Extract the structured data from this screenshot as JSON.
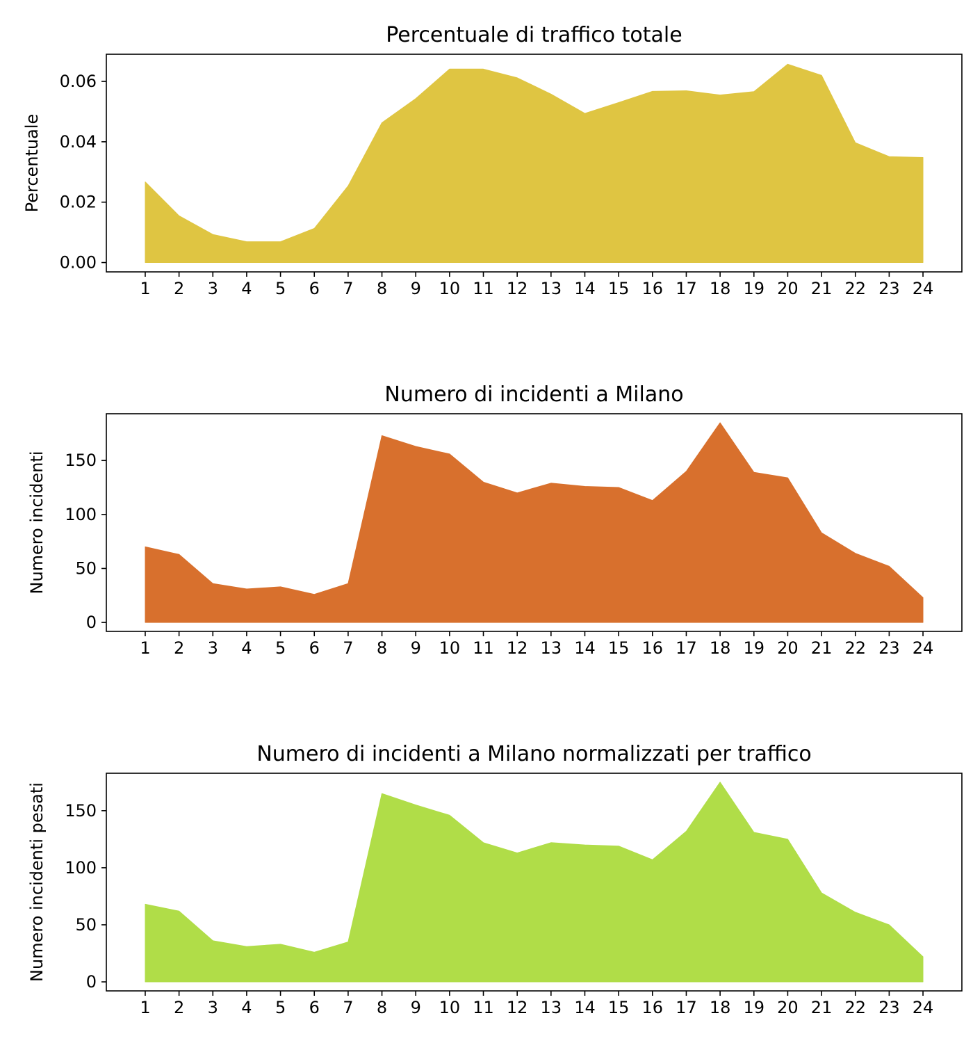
{
  "chart_data": [
    {
      "type": "area",
      "title": "Percentuale di traffico totale",
      "xlabel": "",
      "ylabel": "Percentuale",
      "color": "#dfc542",
      "x": [
        1,
        2,
        3,
        4,
        5,
        6,
        7,
        8,
        9,
        10,
        11,
        12,
        13,
        14,
        15,
        16,
        17,
        18,
        19,
        20,
        21,
        22,
        23,
        24
      ],
      "values": [
        0.0267,
        0.0155,
        0.0093,
        0.0069,
        0.0069,
        0.0113,
        0.0254,
        0.0463,
        0.0543,
        0.0641,
        0.0641,
        0.0612,
        0.0558,
        0.0494,
        0.053,
        0.0567,
        0.0569,
        0.0555,
        0.0566,
        0.0657,
        0.062,
        0.0397,
        0.0351,
        0.0348
      ],
      "ylim": [
        -0.0031,
        0.069
      ],
      "xlim": [
        -0.15,
        25.15
      ],
      "yticks": [
        0.0,
        0.02,
        0.04,
        0.06
      ],
      "ytick_labels": [
        "0.00",
        "0.02",
        "0.04",
        "0.06"
      ],
      "xtick_labels": [
        "1",
        "2",
        "3",
        "4",
        "5",
        "6",
        "7",
        "8",
        "9",
        "10",
        "11",
        "12",
        "13",
        "14",
        "15",
        "16",
        "17",
        "18",
        "19",
        "20",
        "21",
        "22",
        "23",
        "24"
      ],
      "grid": false
    },
    {
      "type": "area",
      "title": "Numero di incidenti a Milano",
      "xlabel": "",
      "ylabel": "Numero incidenti",
      "color": "#d8702d",
      "x": [
        1,
        2,
        3,
        4,
        5,
        6,
        7,
        8,
        9,
        10,
        11,
        12,
        13,
        14,
        15,
        16,
        17,
        18,
        19,
        20,
        21,
        22,
        23,
        24
      ],
      "values": [
        70,
        63,
        36,
        31,
        33,
        26,
        36,
        173,
        163,
        156,
        130,
        120,
        129,
        126,
        125,
        113,
        140,
        185,
        139,
        134,
        83,
        64,
        52,
        23
      ],
      "ylim": [
        -8.3,
        193.3
      ],
      "xlim": [
        -0.15,
        25.15
      ],
      "yticks": [
        0,
        50,
        100,
        150
      ],
      "ytick_labels": [
        "0",
        "50",
        "100",
        "150"
      ],
      "xtick_labels": [
        "1",
        "2",
        "3",
        "4",
        "5",
        "6",
        "7",
        "8",
        "9",
        "10",
        "11",
        "12",
        "13",
        "14",
        "15",
        "16",
        "17",
        "18",
        "19",
        "20",
        "21",
        "22",
        "23",
        "24"
      ],
      "grid": false
    },
    {
      "type": "area",
      "title": "Numero di incidenti a Milano normalizzati per traffico",
      "xlabel": "",
      "ylabel": "Numero incidenti pesati",
      "color": "#b0dd48",
      "x": [
        1,
        2,
        3,
        4,
        5,
        6,
        7,
        8,
        9,
        10,
        11,
        12,
        13,
        14,
        15,
        16,
        17,
        18,
        19,
        20,
        21,
        22,
        23,
        24
      ],
      "values": [
        68,
        62,
        36,
        31,
        33,
        26,
        35,
        165,
        155,
        146,
        122,
        113,
        122,
        120,
        119,
        107,
        132,
        175,
        131,
        125,
        78,
        61,
        50,
        22
      ],
      "ylim": [
        -7.9,
        182.8
      ],
      "xlim": [
        -0.15,
        25.15
      ],
      "yticks": [
        0,
        50,
        100,
        150
      ],
      "ytick_labels": [
        "0",
        "50",
        "100",
        "150"
      ],
      "xtick_labels": [
        "1",
        "2",
        "3",
        "4",
        "5",
        "6",
        "7",
        "8",
        "9",
        "10",
        "11",
        "12",
        "13",
        "14",
        "15",
        "16",
        "17",
        "18",
        "19",
        "20",
        "21",
        "22",
        "23",
        "24"
      ],
      "grid": false
    }
  ]
}
